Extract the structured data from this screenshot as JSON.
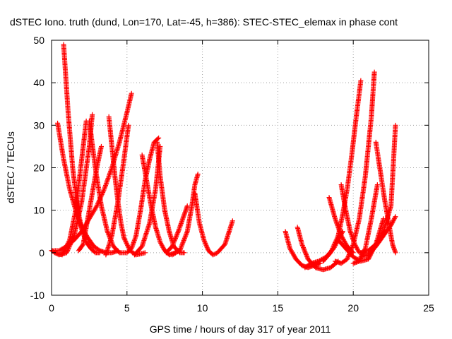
{
  "chart_data": {
    "type": "scatter",
    "title": "dSTEC Iono. truth (dund, Lon=170, Lat=-45, h=386): STEC-STEC_elemax in phase cont",
    "xlabel": "GPS time / hours of day 317 of year 2011",
    "ylabel": "dSTEC  / TECUs",
    "xlim": [
      0,
      25
    ],
    "ylim": [
      -10,
      50
    ],
    "xticks": [
      0,
      5,
      10,
      15,
      20,
      25
    ],
    "yticks": [
      -10,
      0,
      10,
      20,
      30,
      40,
      50
    ],
    "xtick_labels": [
      "0",
      "5",
      "10",
      "15",
      "20",
      "25"
    ],
    "ytick_labels": [
      "-10",
      "0",
      "10",
      "20",
      "30",
      "40",
      "50"
    ],
    "grid": true,
    "marker": "plus",
    "color": "#ff0000",
    "series": [
      {
        "x": [
          0.0,
          0.5,
          1.0,
          1.5,
          2.0,
          2.5,
          3.0,
          3.5,
          4.0,
          4.5,
          5.0,
          5.3
        ],
        "y": [
          0.5,
          0.5,
          1.5,
          3.0,
          5.0,
          8.0,
          11.0,
          15.0,
          20.0,
          26.0,
          33.0,
          37.5
        ]
      },
      {
        "x": [
          0.4,
          0.8,
          1.2,
          1.6,
          2.0,
          2.4,
          2.8,
          3.2,
          3.6,
          4.0,
          4.4
        ],
        "y": [
          30.5,
          22.0,
          15.0,
          10.0,
          6.0,
          3.5,
          1.5,
          0.5,
          0.0,
          0.0,
          0.5
        ]
      },
      {
        "x": [
          0.8,
          1.1,
          1.4,
          1.7,
          2.0,
          2.3,
          2.6,
          2.9,
          3.2
        ],
        "y": [
          49.0,
          33.0,
          20.0,
          11.0,
          5.5,
          2.5,
          1.0,
          0.0,
          0.0
        ]
      },
      {
        "x": [
          0.0,
          0.5,
          1.0,
          1.5,
          2.0,
          2.5,
          2.7
        ],
        "y": [
          0.5,
          -0.5,
          0.0,
          4.0,
          12.0,
          25.0,
          32.5
        ]
      },
      {
        "x": [
          0.2,
          0.7,
          1.2,
          1.6,
          2.0,
          2.3
        ],
        "y": [
          0.0,
          -0.5,
          3.0,
          10.0,
          22.0,
          31.0
        ]
      },
      {
        "x": [
          2.5,
          2.9,
          3.3,
          3.7,
          4.1,
          4.5,
          4.9
        ],
        "y": [
          31.0,
          20.0,
          11.0,
          5.0,
          1.5,
          0.0,
          0.0
        ]
      },
      {
        "x": [
          1.8,
          2.1,
          2.4,
          2.7,
          3.0,
          3.3
        ],
        "y": [
          0.5,
          2.0,
          8.0,
          14.0,
          20.0,
          25.0
        ]
      },
      {
        "x": [
          3.8,
          4.0,
          4.2,
          4.4,
          4.6,
          4.8,
          5.2,
          5.6,
          6.2
        ],
        "y": [
          32.0,
          25.0,
          18.0,
          12.0,
          7.0,
          3.5,
          0.5,
          -0.5,
          0.0
        ]
      },
      {
        "x": [
          3.6,
          4.0,
          4.4,
          4.8,
          5.1
        ],
        "y": [
          -0.5,
          4.0,
          12.0,
          22.0,
          30.0
        ]
      },
      {
        "x": [
          5.0,
          5.3,
          5.6,
          5.9,
          6.2,
          6.5,
          6.8,
          7.1
        ],
        "y": [
          0.0,
          1.0,
          4.0,
          10.0,
          17.0,
          22.0,
          26.0,
          27.0
        ]
      },
      {
        "x": [
          6.0,
          6.3,
          6.6,
          6.9,
          7.2,
          7.5,
          7.8,
          8.2
        ],
        "y": [
          23.0,
          17.0,
          11.0,
          6.0,
          2.5,
          0.5,
          -0.5,
          0.0
        ]
      },
      {
        "x": [
          7.0,
          7.2,
          7.5,
          7.8,
          8.1,
          8.5,
          8.8
        ],
        "y": [
          26.0,
          18.0,
          10.0,
          5.0,
          1.5,
          0.0,
          0.0
        ]
      },
      {
        "x": [
          5.5,
          6.0,
          6.5,
          6.9,
          7.2
        ],
        "y": [
          -0.5,
          1.5,
          7.0,
          15.0,
          25.0
        ]
      },
      {
        "x": [
          7.6,
          8.0,
          8.4,
          8.8,
          9.0
        ],
        "y": [
          0.0,
          1.5,
          5.0,
          9.0,
          11.0
        ]
      },
      {
        "x": [
          8.0,
          8.5,
          9.0,
          9.3,
          9.5,
          9.7
        ],
        "y": [
          -0.5,
          0.5,
          5.0,
          11.0,
          16.0,
          18.5
        ]
      },
      {
        "x": [
          9.5,
          9.8,
          10.1,
          10.4,
          10.7,
          11.0,
          11.5,
          12.0
        ],
        "y": [
          14.0,
          7.0,
          3.0,
          0.5,
          -0.5,
          0.0,
          2.0,
          7.5
        ]
      },
      {
        "x": [
          15.5,
          15.8,
          16.2,
          16.6,
          17.0,
          17.4,
          17.8
        ],
        "y": [
          5.0,
          1.0,
          -1.5,
          -3.0,
          -3.5,
          -3.0,
          -2.5
        ]
      },
      {
        "x": [
          16.3,
          16.6,
          17.0,
          17.5,
          18.0,
          18.5,
          19.0
        ],
        "y": [
          6.0,
          2.0,
          -1.5,
          -3.5,
          -4.0,
          -3.5,
          -2.0
        ]
      },
      {
        "x": [
          16.8,
          17.2,
          17.7,
          18.2,
          18.7,
          19.0,
          19.3
        ],
        "y": [
          -3.5,
          -2.5,
          -2.0,
          -1.0,
          1.0,
          3.0,
          5.0
        ]
      },
      {
        "x": [
          18.4,
          18.8,
          19.2,
          19.6,
          20.0
        ],
        "y": [
          13.0,
          8.0,
          4.0,
          1.5,
          0.0
        ]
      },
      {
        "x": [
          18.0,
          18.5,
          19.0,
          19.3,
          19.6,
          19.9,
          20.2,
          20.5
        ],
        "y": [
          -2.0,
          0.0,
          4.0,
          9.0,
          15.0,
          23.0,
          32.0,
          40.5
        ]
      },
      {
        "x": [
          19.2,
          19.5,
          19.8,
          20.1,
          20.4,
          20.8
        ],
        "y": [
          16.0,
          10.0,
          5.0,
          2.0,
          0.0,
          0.0
        ]
      },
      {
        "x": [
          18.8,
          19.2,
          19.6,
          20.0,
          20.4,
          20.8,
          21.2,
          21.4
        ],
        "y": [
          -2.0,
          -2.5,
          -1.5,
          2.0,
          8.0,
          18.0,
          32.0,
          42.5
        ]
      },
      {
        "x": [
          20.0,
          20.4,
          20.8,
          21.2,
          21.6
        ],
        "y": [
          -2.5,
          -2.0,
          1.0,
          8.0,
          16.0
        ]
      },
      {
        "x": [
          20.5,
          21.0,
          21.5,
          22.0,
          22.5,
          22.8
        ],
        "y": [
          0.0,
          0.5,
          2.0,
          5.0,
          11.0,
          30.0
        ]
      },
      {
        "x": [
          21.5,
          21.8,
          22.1,
          22.4,
          22.6,
          22.8
        ],
        "y": [
          26.0,
          19.0,
          12.0,
          6.0,
          2.0,
          0.0
        ]
      },
      {
        "x": [
          20.5,
          21.0,
          21.5,
          22.0,
          22.5,
          22.8
        ],
        "y": [
          -1.0,
          -0.5,
          1.5,
          4.0,
          6.5,
          8.5
        ]
      },
      {
        "x": [
          19.0,
          19.5,
          20.0,
          20.5,
          21.0,
          21.5,
          22.0
        ],
        "y": [
          3.0,
          1.0,
          -1.0,
          -2.0,
          -1.5,
          2.0,
          8.0
        ]
      }
    ]
  }
}
